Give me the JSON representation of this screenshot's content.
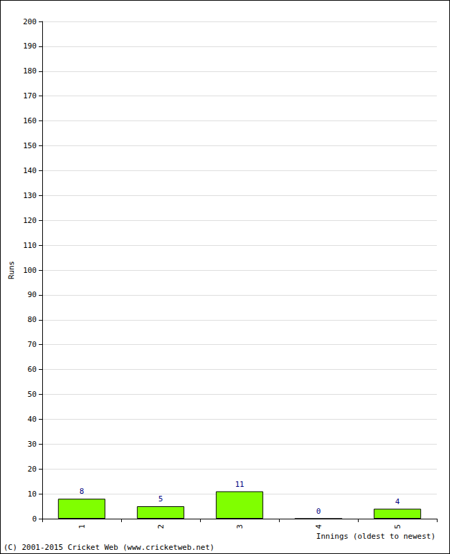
{
  "chart_data": {
    "type": "bar",
    "x_label": "Innings (oldest to newest)",
    "y_label": "Runs",
    "categories": [
      "1",
      "2",
      "3",
      "4",
      "5"
    ],
    "values": [
      8,
      5,
      11,
      0,
      4
    ],
    "color": "#80ff00",
    "ylim": [
      0,
      200
    ],
    "yticks": [
      0,
      10,
      20,
      30,
      40,
      50,
      60,
      70,
      80,
      90,
      100,
      110,
      120,
      130,
      140,
      150,
      160,
      170,
      180,
      190,
      200
    ],
    "grid": true,
    "data_labels": true,
    "annotation": "(C) 2001-2015 Cricket Web (www.cricketweb.net)"
  }
}
